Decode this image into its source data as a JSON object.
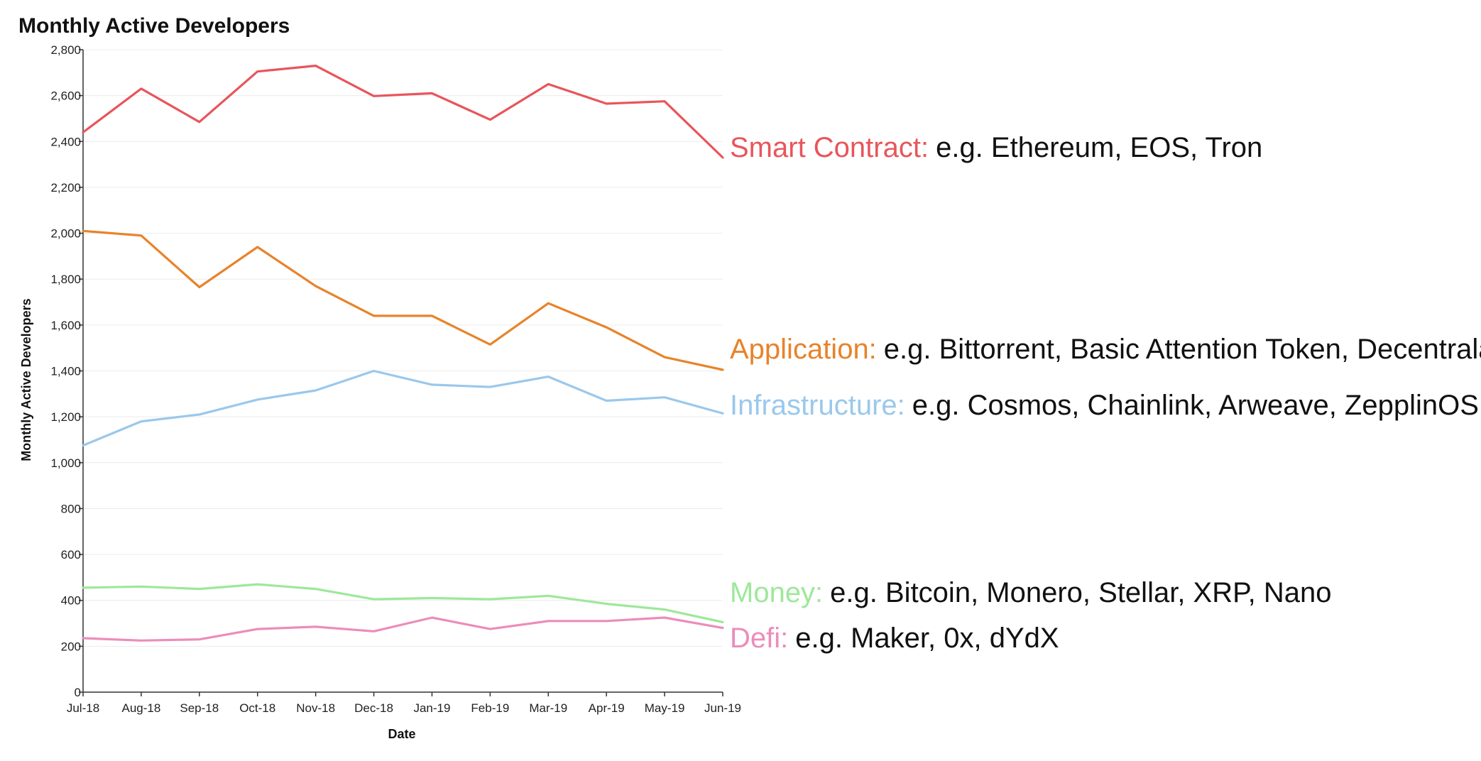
{
  "colors": {
    "smart_contract": "#e8555b",
    "application": "#e8832a",
    "infrastructure": "#9ac8ec",
    "money": "#9de89a",
    "defi": "#ec8cbb"
  },
  "chart_data": {
    "type": "line",
    "title": "Monthly Active Developers",
    "xlabel": "Date",
    "ylabel": "Monthly Active Developers",
    "ylim": [
      0,
      2800
    ],
    "yticks": [
      "0",
      "200",
      "400",
      "600",
      "800",
      "1,000",
      "1,200",
      "1,400",
      "1,600",
      "1,800",
      "2,000",
      "2,200",
      "2,400",
      "2,600",
      "2,800"
    ],
    "categories": [
      "Jul-18",
      "Aug-18",
      "Sep-18",
      "Oct-18",
      "Nov-18",
      "Dec-18",
      "Jan-19",
      "Feb-19",
      "Mar-19",
      "Apr-19",
      "May-19",
      "Jun-19"
    ],
    "grid": true,
    "series": [
      {
        "name": "Smart Contract:",
        "examples": "e.g. Ethereum, EOS, Tron",
        "color_key": "smart_contract",
        "values": [
          2440,
          2630,
          2485,
          2705,
          2730,
          2598,
          2610,
          2495,
          2650,
          2565,
          2575,
          2330
        ]
      },
      {
        "name": "Application:",
        "examples": "e.g. Bittorrent, Basic Attention Token, Decentraland, Bread",
        "color_key": "application",
        "values": [
          2010,
          1990,
          1765,
          1940,
          1770,
          1640,
          1640,
          1515,
          1695,
          1590,
          1460,
          1405
        ]
      },
      {
        "name": "Infrastructure:",
        "examples": "e.g. Cosmos, Chainlink, Arweave, ZepplinOS, Siacoin",
        "color_key": "infrastructure",
        "values": [
          1075,
          1180,
          1210,
          1275,
          1315,
          1400,
          1340,
          1330,
          1375,
          1270,
          1285,
          1215
        ]
      },
      {
        "name": "Money:",
        "examples": "e.g. Bitcoin, Monero, Stellar, XRP, Nano",
        "color_key": "money",
        "values": [
          455,
          460,
          450,
          470,
          450,
          405,
          410,
          405,
          420,
          385,
          360,
          305
        ]
      },
      {
        "name": "Defi:",
        "examples": "e.g. Maker, 0x, dYdX",
        "color_key": "defi",
        "values": [
          235,
          225,
          230,
          275,
          285,
          265,
          325,
          275,
          310,
          310,
          325,
          280
        ]
      }
    ]
  }
}
